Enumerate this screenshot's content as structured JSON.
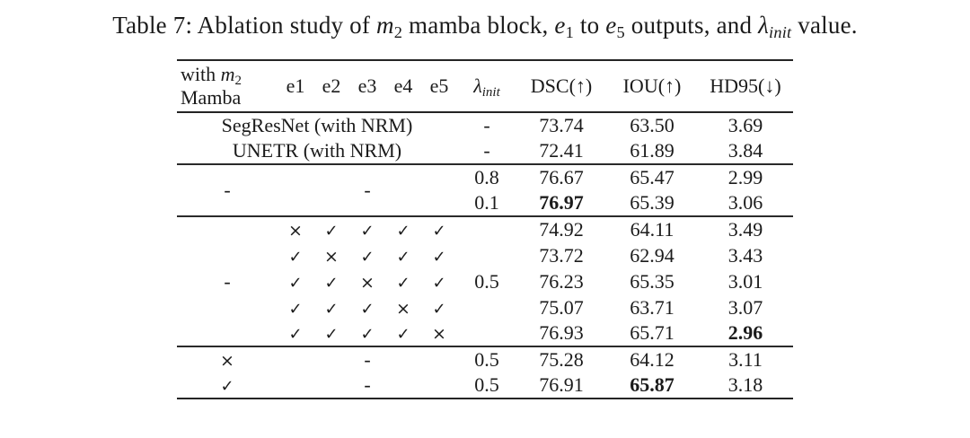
{
  "caption": {
    "part1": "Table 7: Ablation study of ",
    "m_var": "m",
    "m_sub": "2",
    "part2": " mamba block, ",
    "e1_var": "e",
    "e1_sub": "1",
    "part3": " to ",
    "e5_var": "e",
    "e5_sub": "5",
    "part4": " outputs, and ",
    "lambda_var": "λ",
    "lambda_sub": "init",
    "part5": " value."
  },
  "header": {
    "with_prefix": "with ",
    "with_var": "m",
    "with_sub": "2",
    "col1_line2": "Mamba",
    "e_cols": [
      "e1",
      "e2",
      "e3",
      "e4",
      "e5"
    ],
    "lambda_var": "λ",
    "lambda_sub": "init",
    "dsc": "DSC(↑)",
    "iou": "IOU(↑)",
    "hd95": "HD95(↓)"
  },
  "rows": {
    "baseline": [
      {
        "label": "SegResNet (with NRM)",
        "lambda": "-",
        "dsc": "73.74",
        "iou": "63.50",
        "hd95": "3.69"
      },
      {
        "label": "UNETR (with NRM)",
        "lambda": "-",
        "dsc": "72.41",
        "iou": "61.89",
        "hd95": "3.84"
      }
    ],
    "no_mamba": {
      "mamba": "-",
      "e_span": "-",
      "rows": [
        {
          "lambda": "0.8",
          "dsc": "76.67",
          "iou": "65.47",
          "hd95": "2.99"
        },
        {
          "lambda": "0.1",
          "dsc": "76.97",
          "iou": "65.39",
          "hd95": "3.06"
        }
      ]
    },
    "encoder_ablation": {
      "mamba": "-",
      "lambda": "0.5",
      "rows": [
        {
          "e1": "×",
          "e2": "✓",
          "e3": "✓",
          "e4": "✓",
          "e5": "✓",
          "dsc": "74.92",
          "iou": "64.11",
          "hd95": "3.49"
        },
        {
          "e1": "✓",
          "e2": "×",
          "e3": "✓",
          "e4": "✓",
          "e5": "✓",
          "dsc": "73.72",
          "iou": "62.94",
          "hd95": "3.43"
        },
        {
          "e1": "✓",
          "e2": "✓",
          "e3": "×",
          "e4": "✓",
          "e5": "✓",
          "dsc": "76.23",
          "iou": "65.35",
          "hd95": "3.01"
        },
        {
          "e1": "✓",
          "e2": "✓",
          "e3": "✓",
          "e4": "×",
          "e5": "✓",
          "dsc": "75.07",
          "iou": "63.71",
          "hd95": "3.07"
        },
        {
          "e1": "✓",
          "e2": "✓",
          "e3": "✓",
          "e4": "✓",
          "e5": "×",
          "dsc": "76.93",
          "iou": "65.71",
          "hd95": "2.96"
        }
      ]
    },
    "mamba_ablation": [
      {
        "mamba": "×",
        "e_span": "-",
        "lambda": "0.5",
        "dsc": "75.28",
        "iou": "64.12",
        "hd95": "3.11"
      },
      {
        "mamba": "✓",
        "e_span": "-",
        "lambda": "0.5",
        "dsc": "76.91",
        "iou": "65.87",
        "hd95": "3.18"
      }
    ]
  }
}
